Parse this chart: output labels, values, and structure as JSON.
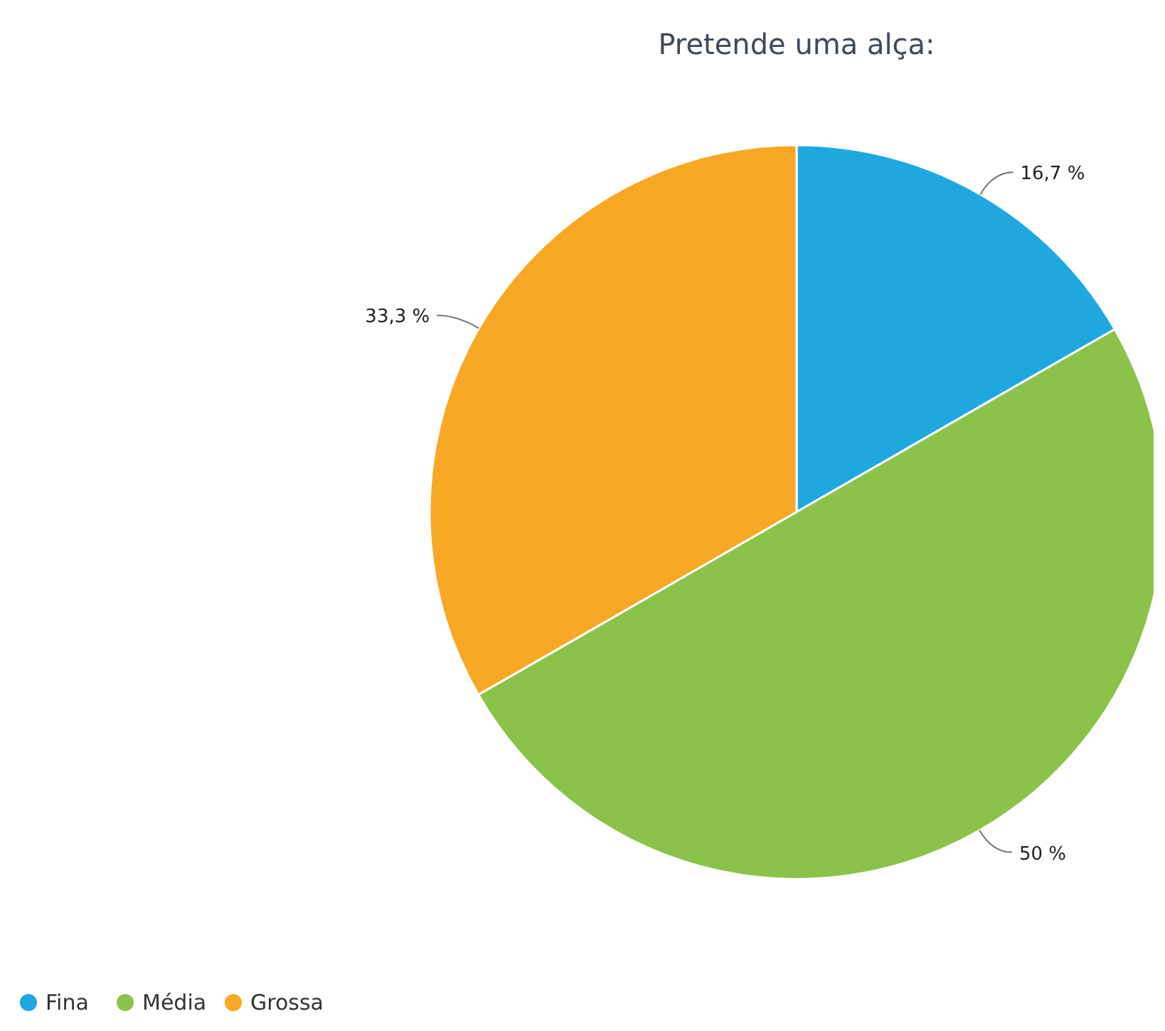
{
  "chart_data": {
    "type": "pie",
    "title": "Pretende uma alça:",
    "categories": [
      "Fina",
      "Média",
      "Grossa"
    ],
    "values": [
      16.7,
      50,
      33.3
    ],
    "value_labels": [
      "16,7 %",
      "50 %",
      "33,3 %"
    ],
    "colors": [
      "#1fa8e0",
      "#8bc34a",
      "#f9a825"
    ],
    "legend": "bottom left"
  }
}
